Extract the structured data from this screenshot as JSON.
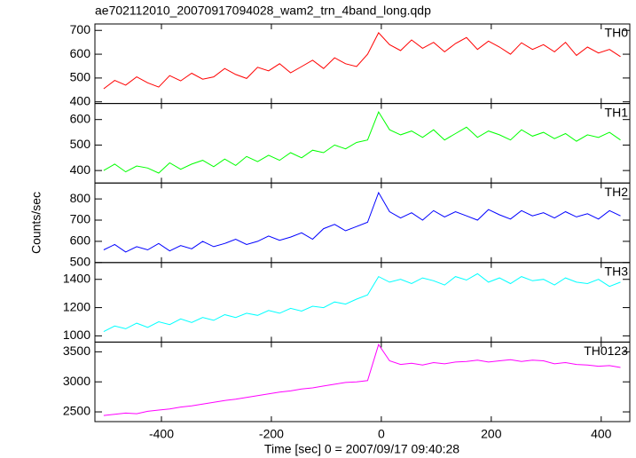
{
  "chart_data": {
    "type": "line",
    "title": "ae702112010_20070917094028_wam2_trn_4band_long.qdp",
    "xlabel": "Time [sec] 0 = 2007/09/17 09:40:28",
    "ylabel": "Counts/sec",
    "xlim": [
      -521,
      452
    ],
    "xticks": [
      -400,
      -200,
      0,
      200,
      400
    ],
    "x": [
      -505,
      -485,
      -465,
      -445,
      -425,
      -405,
      -385,
      -365,
      -345,
      -325,
      -305,
      -285,
      -265,
      -245,
      -225,
      -205,
      -185,
      -165,
      -145,
      -125,
      -105,
      -85,
      -65,
      -45,
      -25,
      -5,
      15,
      35,
      55,
      75,
      95,
      115,
      135,
      155,
      175,
      195,
      215,
      235,
      255,
      275,
      295,
      315,
      335,
      355,
      375,
      395,
      415,
      435
    ],
    "series": [
      {
        "name": "TH0",
        "color": "#ff0000",
        "ylim": [
          393,
          727
        ],
        "yticks": [
          400,
          500,
          600,
          700
        ],
        "values": [
          455,
          490,
          470,
          505,
          480,
          462,
          510,
          488,
          520,
          495,
          505,
          540,
          515,
          498,
          545,
          530,
          560,
          522,
          548,
          575,
          540,
          585,
          560,
          548,
          600,
          690,
          640,
          615,
          660,
          625,
          650,
          610,
          645,
          670,
          620,
          655,
          630,
          600,
          648,
          620,
          640,
          610,
          650,
          595,
          630,
          605,
          620,
          590
        ]
      },
      {
        "name": "TH1",
        "color": "#00ff00",
        "ylim": [
          351,
          663
        ],
        "yticks": [
          400,
          500,
          600
        ],
        "values": [
          400,
          425,
          395,
          418,
          410,
          390,
          430,
          405,
          425,
          440,
          415,
          445,
          420,
          455,
          435,
          460,
          440,
          470,
          450,
          480,
          470,
          500,
          485,
          510,
          520,
          630,
          560,
          540,
          555,
          530,
          560,
          520,
          545,
          570,
          530,
          555,
          540,
          520,
          560,
          535,
          550,
          525,
          545,
          515,
          540,
          530,
          550,
          520
        ]
      },
      {
        "name": "TH2",
        "color": "#0000ff",
        "ylim": [
          500,
          875
        ],
        "yticks": [
          500,
          600,
          700,
          800
        ],
        "values": [
          560,
          585,
          550,
          575,
          560,
          590,
          555,
          580,
          565,
          600,
          575,
          590,
          610,
          585,
          600,
          625,
          605,
          620,
          640,
          610,
          660,
          680,
          650,
          670,
          690,
          830,
          740,
          710,
          735,
          700,
          745,
          715,
          740,
          720,
          700,
          750,
          725,
          705,
          745,
          720,
          735,
          710,
          740,
          715,
          730,
          705,
          745,
          720
        ]
      },
      {
        "name": "TH3",
        "color": "#00ffff",
        "ylim": [
          956,
          1519
        ],
        "yticks": [
          1000,
          1200,
          1400
        ],
        "values": [
          1030,
          1070,
          1050,
          1090,
          1060,
          1100,
          1080,
          1120,
          1095,
          1130,
          1110,
          1150,
          1130,
          1160,
          1145,
          1180,
          1160,
          1195,
          1175,
          1210,
          1200,
          1240,
          1225,
          1260,
          1290,
          1420,
          1380,
          1400,
          1370,
          1410,
          1390,
          1360,
          1420,
          1395,
          1440,
          1380,
          1410,
          1370,
          1420,
          1390,
          1400,
          1360,
          1410,
          1380,
          1370,
          1400,
          1350,
          1380
        ]
      },
      {
        "name": "TH0123",
        "color": "#ff00ff",
        "ylim": [
          2338,
          3662
        ],
        "yticks": [
          2500,
          3000,
          3500
        ],
        "values": [
          2440,
          2460,
          2480,
          2470,
          2510,
          2530,
          2550,
          2580,
          2600,
          2630,
          2660,
          2690,
          2710,
          2740,
          2770,
          2800,
          2830,
          2850,
          2880,
          2900,
          2930,
          2960,
          2990,
          3000,
          3020,
          3620,
          3350,
          3290,
          3310,
          3280,
          3320,
          3300,
          3330,
          3340,
          3360,
          3330,
          3350,
          3370,
          3340,
          3360,
          3350,
          3300,
          3320,
          3290,
          3280,
          3260,
          3270,
          3240
        ]
      }
    ]
  }
}
